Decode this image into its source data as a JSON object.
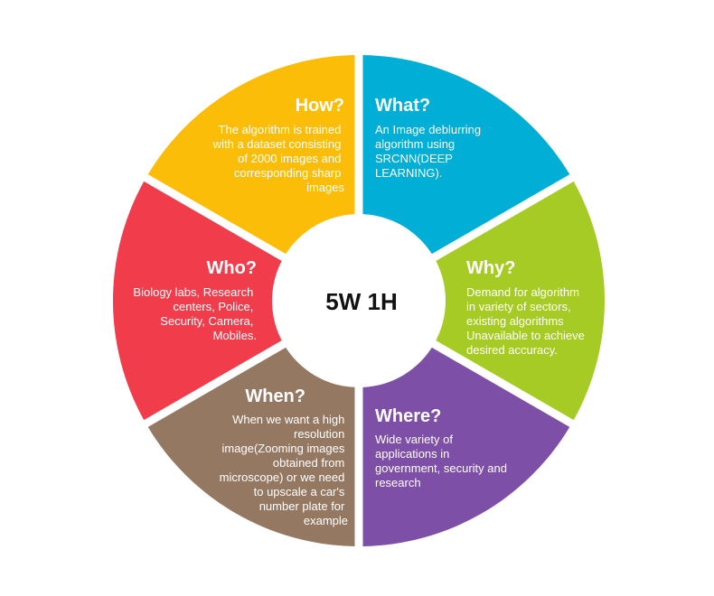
{
  "diagram": {
    "center_label": "5W 1H",
    "segments": [
      {
        "key": "what",
        "title": "What?",
        "color": "#00aed6",
        "lines": [
          "An Image deblurring",
          "algorithm using",
          "SRCNN(DEEP",
          "LEARNING)."
        ]
      },
      {
        "key": "why",
        "title": "Why?",
        "color": "#a6cb24",
        "lines": [
          "Demand for algorithm",
          "in variety of sectors,",
          "existing algorithms",
          "Unavailable to achieve",
          "desired accuracy."
        ]
      },
      {
        "key": "where",
        "title": "Where?",
        "color": "#7e4fa6",
        "lines": [
          "Wide variety of",
          "applications in",
          "government, security and",
          "research"
        ]
      },
      {
        "key": "when",
        "title": "When?",
        "color": "#947862",
        "lines": [
          "When we want a high",
          "resolution",
          "image(Zooming images",
          "obtained from",
          "microscope) or we need",
          "to upscale a car's",
          "number plate for",
          "example"
        ]
      },
      {
        "key": "who",
        "title": "Who?",
        "color": "#f03c4b",
        "lines": [
          "Biology labs, Research",
          "centers, Police,",
          "Security, Camera,",
          "Mobiles."
        ]
      },
      {
        "key": "how",
        "title": "How?",
        "color": "#fbbd08",
        "lines": [
          "The algorithm is trained",
          "with a dataset consisting",
          "of 2000 images and",
          "corresponding sharp",
          "images"
        ]
      }
    ]
  }
}
